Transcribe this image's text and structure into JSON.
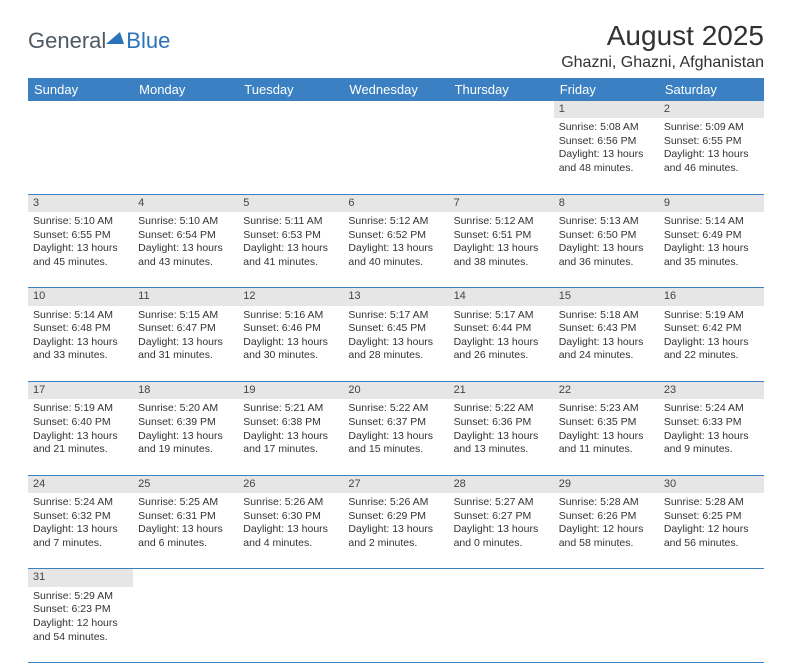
{
  "logo": {
    "text1": "General",
    "text2": "Blue",
    "color1": "#4f5962",
    "color2": "#2a73b8"
  },
  "header": {
    "month_title": "August 2025",
    "location": "Ghazni, Ghazni, Afghanistan"
  },
  "colors": {
    "header_bg": "#3a80c2",
    "header_fg": "#ffffff",
    "daynum_bg": "#e6e6e6",
    "row_border": "#3a80c2",
    "text": "#333333"
  },
  "calendar": {
    "day_headers": [
      "Sunday",
      "Monday",
      "Tuesday",
      "Wednesday",
      "Thursday",
      "Friday",
      "Saturday"
    ],
    "weeks": [
      [
        null,
        null,
        null,
        null,
        null,
        {
          "n": "1",
          "sr": "5:08 AM",
          "ss": "6:56 PM",
          "dl": "13 hours and 48 minutes."
        },
        {
          "n": "2",
          "sr": "5:09 AM",
          "ss": "6:55 PM",
          "dl": "13 hours and 46 minutes."
        }
      ],
      [
        {
          "n": "3",
          "sr": "5:10 AM",
          "ss": "6:55 PM",
          "dl": "13 hours and 45 minutes."
        },
        {
          "n": "4",
          "sr": "5:10 AM",
          "ss": "6:54 PM",
          "dl": "13 hours and 43 minutes."
        },
        {
          "n": "5",
          "sr": "5:11 AM",
          "ss": "6:53 PM",
          "dl": "13 hours and 41 minutes."
        },
        {
          "n": "6",
          "sr": "5:12 AM",
          "ss": "6:52 PM",
          "dl": "13 hours and 40 minutes."
        },
        {
          "n": "7",
          "sr": "5:12 AM",
          "ss": "6:51 PM",
          "dl": "13 hours and 38 minutes."
        },
        {
          "n": "8",
          "sr": "5:13 AM",
          "ss": "6:50 PM",
          "dl": "13 hours and 36 minutes."
        },
        {
          "n": "9",
          "sr": "5:14 AM",
          "ss": "6:49 PM",
          "dl": "13 hours and 35 minutes."
        }
      ],
      [
        {
          "n": "10",
          "sr": "5:14 AM",
          "ss": "6:48 PM",
          "dl": "13 hours and 33 minutes."
        },
        {
          "n": "11",
          "sr": "5:15 AM",
          "ss": "6:47 PM",
          "dl": "13 hours and 31 minutes."
        },
        {
          "n": "12",
          "sr": "5:16 AM",
          "ss": "6:46 PM",
          "dl": "13 hours and 30 minutes."
        },
        {
          "n": "13",
          "sr": "5:17 AM",
          "ss": "6:45 PM",
          "dl": "13 hours and 28 minutes."
        },
        {
          "n": "14",
          "sr": "5:17 AM",
          "ss": "6:44 PM",
          "dl": "13 hours and 26 minutes."
        },
        {
          "n": "15",
          "sr": "5:18 AM",
          "ss": "6:43 PM",
          "dl": "13 hours and 24 minutes."
        },
        {
          "n": "16",
          "sr": "5:19 AM",
          "ss": "6:42 PM",
          "dl": "13 hours and 22 minutes."
        }
      ],
      [
        {
          "n": "17",
          "sr": "5:19 AM",
          "ss": "6:40 PM",
          "dl": "13 hours and 21 minutes."
        },
        {
          "n": "18",
          "sr": "5:20 AM",
          "ss": "6:39 PM",
          "dl": "13 hours and 19 minutes."
        },
        {
          "n": "19",
          "sr": "5:21 AM",
          "ss": "6:38 PM",
          "dl": "13 hours and 17 minutes."
        },
        {
          "n": "20",
          "sr": "5:22 AM",
          "ss": "6:37 PM",
          "dl": "13 hours and 15 minutes."
        },
        {
          "n": "21",
          "sr": "5:22 AM",
          "ss": "6:36 PM",
          "dl": "13 hours and 13 minutes."
        },
        {
          "n": "22",
          "sr": "5:23 AM",
          "ss": "6:35 PM",
          "dl": "13 hours and 11 minutes."
        },
        {
          "n": "23",
          "sr": "5:24 AM",
          "ss": "6:33 PM",
          "dl": "13 hours and 9 minutes."
        }
      ],
      [
        {
          "n": "24",
          "sr": "5:24 AM",
          "ss": "6:32 PM",
          "dl": "13 hours and 7 minutes."
        },
        {
          "n": "25",
          "sr": "5:25 AM",
          "ss": "6:31 PM",
          "dl": "13 hours and 6 minutes."
        },
        {
          "n": "26",
          "sr": "5:26 AM",
          "ss": "6:30 PM",
          "dl": "13 hours and 4 minutes."
        },
        {
          "n": "27",
          "sr": "5:26 AM",
          "ss": "6:29 PM",
          "dl": "13 hours and 2 minutes."
        },
        {
          "n": "28",
          "sr": "5:27 AM",
          "ss": "6:27 PM",
          "dl": "13 hours and 0 minutes."
        },
        {
          "n": "29",
          "sr": "5:28 AM",
          "ss": "6:26 PM",
          "dl": "12 hours and 58 minutes."
        },
        {
          "n": "30",
          "sr": "5:28 AM",
          "ss": "6:25 PM",
          "dl": "12 hours and 56 minutes."
        }
      ],
      [
        {
          "n": "31",
          "sr": "5:29 AM",
          "ss": "6:23 PM",
          "dl": "12 hours and 54 minutes."
        },
        null,
        null,
        null,
        null,
        null,
        null
      ]
    ],
    "labels": {
      "sunrise": "Sunrise:",
      "sunset": "Sunset:",
      "daylight": "Daylight:"
    }
  }
}
